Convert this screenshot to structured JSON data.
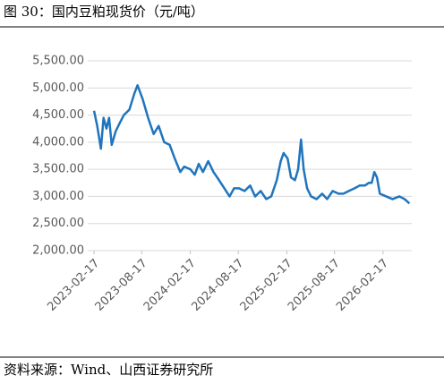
{
  "chart_data": {
    "type": "line",
    "title": "图 30：国内豆粕现货价（元/吨）",
    "source": "资料来源：Wind、山西证券研究所",
    "x": [
      "2023-02-17",
      "2023-03-01",
      "2023-03-15",
      "2023-03-25",
      "2023-04-05",
      "2023-04-15",
      "2023-04-25",
      "2023-05-10",
      "2023-05-25",
      "2023-06-10",
      "2023-07-01",
      "2023-07-20",
      "2023-08-01",
      "2023-08-20",
      "2023-09-10",
      "2023-10-01",
      "2023-10-20",
      "2023-11-10",
      "2023-12-01",
      "2023-12-20",
      "2024-01-10",
      "2024-01-25",
      "2024-02-17",
      "2024-03-05",
      "2024-03-20",
      "2024-04-05",
      "2024-04-25",
      "2024-05-15",
      "2024-06-05",
      "2024-06-25",
      "2024-07-15",
      "2024-08-01",
      "2024-08-20",
      "2024-09-10",
      "2024-10-01",
      "2024-10-20",
      "2024-11-10",
      "2024-12-01",
      "2024-12-20",
      "2025-01-10",
      "2025-01-25",
      "2025-02-05",
      "2025-02-20",
      "2025-03-05",
      "2025-03-20",
      "2025-04-01",
      "2025-04-12",
      "2025-04-22",
      "2025-05-05",
      "2025-05-20",
      "2025-06-10",
      "2025-07-01",
      "2025-07-20",
      "2025-08-10",
      "2025-09-01",
      "2025-09-20",
      "2025-10-10",
      "2025-11-01",
      "2025-11-20",
      "2025-12-10",
      "2025-12-25",
      "2026-01-05",
      "2026-01-15",
      "2026-01-25",
      "2026-02-05",
      "2026-03-01",
      "2026-03-25",
      "2026-04-20",
      "2026-05-10",
      "2026-05-28"
    ],
    "series": [
      {
        "color": "#1f75be",
        "values": [
          4580,
          4300,
          3880,
          4450,
          4250,
          4450,
          3950,
          4200,
          4350,
          4500,
          4600,
          4900,
          5050,
          4800,
          4450,
          4150,
          4300,
          4000,
          3950,
          3700,
          3450,
          3550,
          3500,
          3400,
          3600,
          3450,
          3650,
          3450,
          3300,
          3150,
          3000,
          3150,
          3150,
          3100,
          3200,
          3000,
          3100,
          2950,
          3000,
          3300,
          3650,
          3800,
          3700,
          3350,
          3300,
          3500,
          4050,
          3500,
          3150,
          3000,
          2950,
          3050,
          2950,
          3100,
          3050,
          3050,
          3100,
          3150,
          3200,
          3200,
          3250,
          3250,
          3450,
          3350,
          3050,
          3000,
          2950,
          3000,
          2950,
          2870
        ]
      }
    ],
    "xlim": [
      "2023-01-24",
      "2026-06-06"
    ],
    "xticks": [
      "2023-02-17",
      "2023-08-17",
      "2024-02-17",
      "2024-08-17",
      "2025-02-17",
      "2025-08-17",
      "2026-02-17"
    ],
    "ylim": [
      2000,
      5500
    ],
    "yticks": [
      {
        "value": 2000,
        "label": "2,000.00"
      },
      {
        "value": 2500,
        "label": "2,500.00"
      },
      {
        "value": 3000,
        "label": "3,000.00"
      },
      {
        "value": 3500,
        "label": "3,500.00"
      },
      {
        "value": 4000,
        "label": "4,000.00"
      },
      {
        "value": 4500,
        "label": "4,500.00"
      },
      {
        "value": 5000,
        "label": "5,000.00"
      },
      {
        "value": 5500,
        "label": "5,500.00"
      }
    ],
    "grid": true
  }
}
